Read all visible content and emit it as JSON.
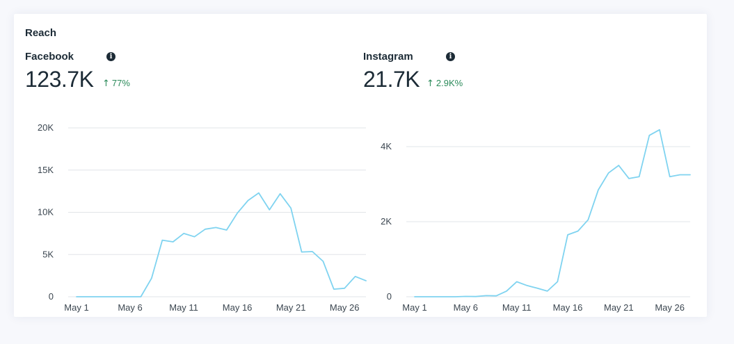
{
  "card": {
    "title": "Reach"
  },
  "facebook": {
    "name": "Facebook",
    "value": "123.7K",
    "delta": "77%",
    "delta_color": "#2b8a5a"
  },
  "instagram": {
    "name": "Instagram",
    "value": "21.7K",
    "delta": "2.9K%",
    "delta_color": "#2b8a5a"
  },
  "icons": {
    "info": "info-icon",
    "delta_arrow": "arrow-up-icon"
  },
  "chart_data": [
    {
      "type": "line",
      "platform": "Facebook",
      "line_color": "#7fd3f0",
      "grid": true,
      "x_ticks": [
        "May 1",
        "May 6",
        "May 11",
        "May 16",
        "May 21",
        "May 26"
      ],
      "y_ticks": [
        "0",
        "5K",
        "10K",
        "15K",
        "20K"
      ],
      "y_tick_values": [
        0,
        5000,
        10000,
        15000,
        20000
      ],
      "ylim": [
        0,
        20000
      ],
      "x": [
        1,
        2,
        3,
        4,
        5,
        6,
        7,
        8,
        9,
        10,
        11,
        12,
        13,
        14,
        15,
        16,
        17,
        18,
        19,
        20,
        21,
        22,
        23,
        24,
        25,
        26,
        27,
        28
      ],
      "values": [
        0,
        0,
        0,
        0,
        0,
        0,
        0,
        2200,
        6700,
        6500,
        7500,
        7100,
        8000,
        8200,
        7900,
        9900,
        11400,
        12300,
        10300,
        12200,
        10500,
        5300,
        5350,
        4200,
        900,
        1000,
        2400,
        1900
      ]
    },
    {
      "type": "line",
      "platform": "Instagram",
      "line_color": "#7fd3f0",
      "grid": true,
      "x_ticks": [
        "May 1",
        "May 6",
        "May 11",
        "May 16",
        "May 21",
        "May 26"
      ],
      "y_ticks": [
        "0",
        "2K",
        "4K"
      ],
      "y_tick_values": [
        0,
        2000,
        4000
      ],
      "ylim": [
        0,
        4500
      ],
      "x": [
        1,
        2,
        3,
        4,
        5,
        6,
        7,
        8,
        9,
        10,
        11,
        12,
        13,
        14,
        15,
        16,
        17,
        18,
        19,
        20,
        21,
        22,
        23,
        24,
        25,
        26,
        27,
        28
      ],
      "values": [
        0,
        0,
        0,
        0,
        0,
        10,
        5,
        30,
        25,
        150,
        400,
        300,
        230,
        150,
        400,
        1650,
        1750,
        2050,
        2850,
        3300,
        3500,
        3150,
        3200,
        4300,
        4450,
        3200,
        3250,
        3250
      ]
    }
  ]
}
